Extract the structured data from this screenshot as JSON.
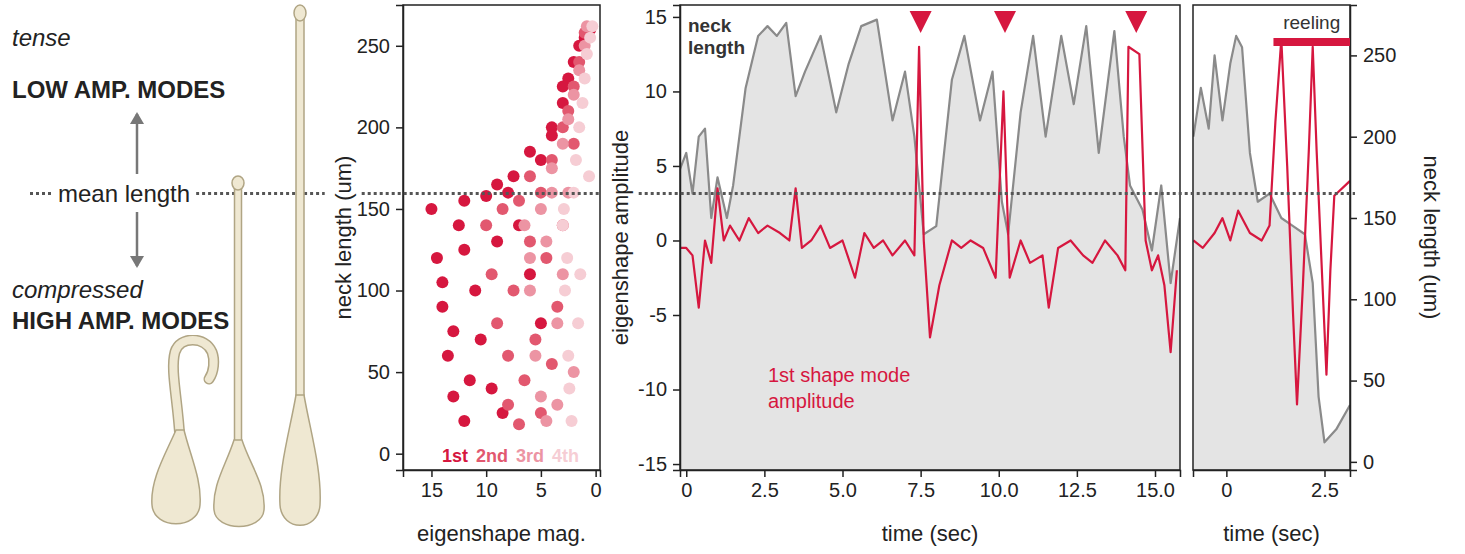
{
  "schematic": {
    "top_note": "tense",
    "top_label": "LOW AMP. MODES",
    "mean_label": "mean length",
    "mean_value": 165,
    "bottom_note": "compressed",
    "bottom_label": "HIGH AMP. MODES"
  },
  "chart_data": [
    {
      "type": "scatter",
      "xlabel": "eigenshape mag.",
      "ylabel": "neck length (um)",
      "xlim": [
        17.6,
        -0.4
      ],
      "xticks": [
        15,
        10,
        5,
        0
      ],
      "ylim": [
        -10,
        275
      ],
      "yticks": [
        0,
        50,
        100,
        150,
        200,
        250
      ],
      "legend": "bottom",
      "marker": "circle",
      "series": [
        {
          "name": "1st",
          "color": "#d6173f",
          "x": [
            15,
            14.5,
            12,
            10,
            8,
            14,
            11,
            9,
            13.5,
            10.5,
            7,
            13,
            9.5,
            6,
            12,
            8.5,
            5,
            7.5,
            9,
            6,
            4,
            5,
            3,
            4,
            2.5,
            2,
            1.5,
            3,
            1,
            0.5,
            13,
            12.5,
            11.5,
            14,
            12
          ],
          "values": [
            150,
            120,
            155,
            158,
            160,
            90,
            100,
            130,
            60,
            70,
            140,
            35,
            40,
            110,
            20,
            25,
            80,
            170,
            165,
            185,
            200,
            180,
            215,
            195,
            230,
            240,
            250,
            225,
            255,
            260,
            75,
            140,
            45,
            105,
            125
          ]
        },
        {
          "name": "2nd",
          "color": "#e2586f",
          "x": [
            10,
            9.5,
            8.5,
            7,
            9,
            8,
            6,
            7.5,
            5,
            8,
            6.5,
            4.5,
            7,
            5.5,
            3.5,
            6,
            4,
            3,
            2.5,
            2,
            1.5,
            1,
            5,
            4,
            3,
            2
          ],
          "values": [
            140,
            110,
            150,
            155,
            80,
            60,
            130,
            100,
            160,
            30,
            45,
            120,
            18,
            70,
            90,
            170,
            180,
            200,
            210,
            225,
            240,
            258,
            25,
            55,
            140,
            190
          ]
        },
        {
          "name": "3rd",
          "color": "#ec94a3",
          "x": [
            6.5,
            6,
            5.5,
            5,
            4.5,
            6,
            5,
            4,
            3.5,
            4,
            3,
            2.5,
            2,
            1.5,
            1,
            0.8,
            3,
            2,
            4.5,
            3.5,
            2.5
          ],
          "values": [
            140,
            100,
            60,
            150,
            20,
            120,
            35,
            160,
            80,
            175,
            190,
            205,
            220,
            235,
            250,
            262,
            110,
            50,
            130,
            30,
            160
          ]
        },
        {
          "name": "4th",
          "color": "#f6cdd4",
          "x": [
            3,
            2.8,
            2.5,
            2.2,
            2,
            2.6,
            1.8,
            1.5,
            1.2,
            1,
            0.8,
            0.5,
            0.3,
            2.4,
            1.6,
            2.9,
            1.4,
            0.6
          ],
          "values": [
            140,
            100,
            60,
            20,
            160,
            120,
            180,
            200,
            215,
            230,
            245,
            255,
            262,
            40,
            80,
            150,
            110,
            170
          ]
        }
      ]
    },
    {
      "type": "line",
      "xlabel": "time (sec)",
      "ylabel": "eigenshape amplitude",
      "xlim": [
        -0.2,
        15.8
      ],
      "xticks": [
        0,
        2.5,
        {
          "value": 5,
          "label": "5.0"
        },
        7.5,
        {
          "value": 10,
          "label": "10.0"
        },
        12.5,
        {
          "value": 15,
          "label": "15.0"
        }
      ],
      "ylim": [
        -15.4,
        15.8
      ],
      "yticks": [
        -15,
        -10,
        -5,
        0,
        5,
        10,
        15
      ],
      "y2lim": [
        -5,
        281
      ],
      "events": [
        7.5,
        10.2,
        14.4
      ],
      "series": [
        {
          "name": "neck length",
          "type": "area",
          "axis": "y2",
          "color": "#8a8a8a",
          "x": [
            -0.2,
            0,
            0.2,
            0.4,
            0.6,
            0.8,
            1.0,
            1.3,
            1.5,
            1.9,
            2.3,
            2.6,
            2.9,
            3.2,
            3.5,
            3.8,
            4.3,
            4.8,
            5.2,
            5.6,
            6.1,
            6.6,
            7.0,
            7.3,
            7.6,
            8.0,
            8.5,
            8.9,
            9.4,
            9.8,
            10.1,
            10.3,
            10.7,
            11.1,
            11.5,
            12.0,
            12.4,
            12.8,
            13.2,
            13.7,
            14.0,
            14.2,
            14.6,
            14.9,
            15.2,
            15.5,
            15.8
          ],
          "values": [
            180,
            190,
            165,
            200,
            205,
            150,
            175,
            150,
            170,
            230,
            262,
            268,
            262,
            270,
            225,
            240,
            262,
            215,
            245,
            268,
            272,
            210,
            240,
            200,
            140,
            145,
            235,
            262,
            210,
            240,
            160,
            140,
            215,
            262,
            200,
            262,
            220,
            268,
            190,
            265,
            200,
            170,
            155,
            130,
            170,
            110,
            150
          ]
        },
        {
          "name": "1st shape mode amplitude",
          "color": "#d6173f",
          "x": [
            -0.2,
            0,
            0.2,
            0.4,
            0.6,
            0.8,
            1.0,
            1.2,
            1.4,
            1.7,
            2.0,
            2.3,
            2.6,
            3.0,
            3.3,
            3.5,
            3.7,
            4.0,
            4.3,
            4.6,
            5.0,
            5.4,
            5.7,
            6.0,
            6.3,
            6.6,
            7.0,
            7.3,
            7.45,
            7.6,
            7.8,
            8.1,
            8.5,
            8.8,
            9.1,
            9.5,
            9.9,
            10.15,
            10.35,
            10.7,
            11.0,
            11.4,
            11.6,
            11.9,
            12.3,
            12.7,
            13.0,
            13.4,
            13.8,
            14.05,
            14.15,
            14.5,
            14.7,
            14.9,
            15.1,
            15.3,
            15.5,
            15.7
          ],
          "values": [
            -0.5,
            -0.5,
            -1,
            -4.5,
            0,
            -1.5,
            3.5,
            0,
            1,
            0,
            1.5,
            0.5,
            1,
            0.5,
            0,
            3.5,
            -0.5,
            0,
            1,
            -0.5,
            0,
            -2.5,
            0.5,
            -0.5,
            0,
            -1,
            0,
            -1,
            13,
            0,
            -6.5,
            -3,
            0,
            -0.5,
            0,
            -0.5,
            -2.5,
            10,
            -2.5,
            0,
            -1.5,
            -1,
            -4.5,
            -0.5,
            0,
            -1,
            -1.5,
            0,
            -1,
            -2,
            13,
            12.5,
            0,
            -2,
            -1,
            -3,
            -7.5,
            -2
          ]
        }
      ]
    },
    {
      "type": "line",
      "xlabel": "time (sec)",
      "y2label": "neck length (um)",
      "xlim": [
        -0.85,
        3.15
      ],
      "xticks": [
        0,
        2.5
      ],
      "ylim": [
        -15.4,
        15.8
      ],
      "y2lim": [
        -5,
        281
      ],
      "y2ticks": [
        0,
        50,
        100,
        150,
        200,
        250
      ],
      "reeling": {
        "label": "reeling",
        "start": 1.2,
        "end": 3.15
      },
      "series": [
        {
          "type": "area",
          "axis": "y2",
          "color": "#8a8a8a",
          "x": [
            -0.84,
            -0.65,
            -0.45,
            -0.3,
            -0.1,
            0.1,
            0.25,
            0.4,
            0.6,
            0.8,
            1.1,
            1.4,
            1.7,
            2.0,
            2.2,
            2.35,
            2.5,
            2.8,
            3.15
          ],
          "values": [
            200,
            230,
            205,
            250,
            210,
            245,
            262,
            255,
            190,
            160,
            165,
            150,
            145,
            140,
            110,
            40,
            12,
            20,
            35
          ]
        },
        {
          "color": "#d6173f",
          "x": [
            -0.84,
            -0.6,
            -0.3,
            -0.1,
            0.1,
            0.3,
            0.6,
            0.9,
            1.1,
            1.25,
            1.4,
            1.55,
            1.7,
            1.8,
            1.95,
            2.1,
            2.2,
            2.3,
            2.45,
            2.55,
            2.65,
            2.75,
            3.15
          ],
          "values": [
            0,
            -0.5,
            0.5,
            1.5,
            0,
            2,
            0.5,
            0,
            1,
            8,
            13.5,
            5,
            -5,
            -11,
            -3,
            6,
            13,
            6,
            -3,
            -9,
            -2,
            3,
            4
          ]
        }
      ]
    }
  ]
}
